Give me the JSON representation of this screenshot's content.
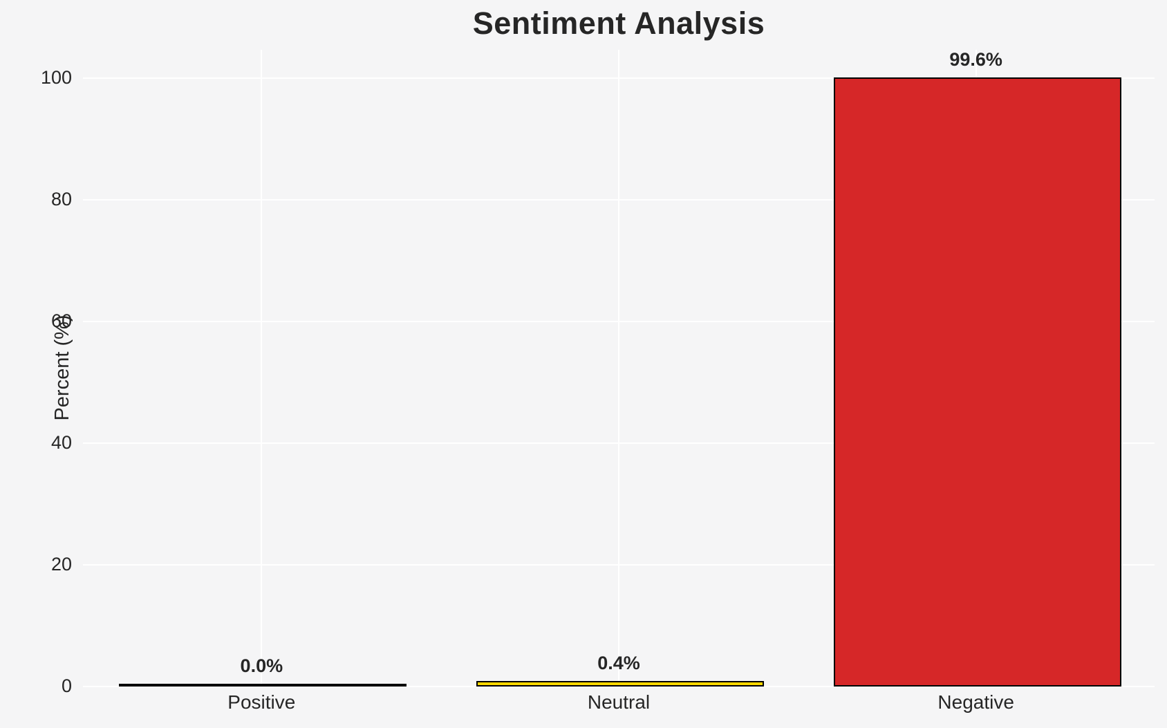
{
  "chart_data": {
    "type": "bar",
    "title": "Sentiment Analysis",
    "ylabel": "Percent (%)",
    "xlabel": "",
    "categories": [
      "Positive",
      "Neutral",
      "Negative"
    ],
    "values": [
      0.0,
      0.4,
      99.6
    ],
    "value_labels": [
      "0.0%",
      "0.4%",
      "99.6%"
    ],
    "bar_colors": [
      null,
      "#ffd700",
      "#d62728"
    ],
    "bar_edge_color": "#000000",
    "yticks": [
      0,
      20,
      40,
      60,
      80,
      100
    ],
    "ylim": [
      0,
      104.6
    ],
    "grid": "on",
    "legend": "none",
    "background_color": "#f5f5f6",
    "gridline_color": "#ffffff",
    "text_color": "#262626"
  }
}
